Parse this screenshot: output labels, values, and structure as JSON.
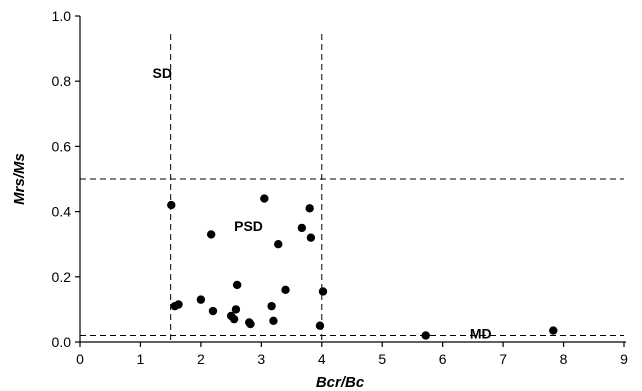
{
  "chart_data": {
    "type": "scatter",
    "title": "",
    "xlabel": "Bcr/Bc",
    "ylabel": "Mrs/Ms",
    "xlim": [
      0,
      9
    ],
    "ylim": [
      0.0,
      1.0
    ],
    "xticks": [
      0,
      1,
      2,
      3,
      4,
      5,
      6,
      7,
      8,
      9
    ],
    "yticks": [
      0.0,
      0.2,
      0.4,
      0.6,
      0.8,
      1.0
    ],
    "xtick_labels": [
      "0",
      "1",
      "2",
      "3",
      "4",
      "5",
      "6",
      "7",
      "8",
      "9"
    ],
    "ytick_labels": [
      "0.0",
      "0.2",
      "0.4",
      "0.6",
      "0.8",
      "1.0"
    ],
    "grid": false,
    "reference_lines": {
      "vertical": [
        1.5,
        4.0
      ],
      "horizontal": [
        0.5,
        0.02
      ]
    },
    "annotations": [
      {
        "text": "SD",
        "x": 1.2,
        "y": 0.81
      },
      {
        "text": "PSD",
        "x": 2.55,
        "y": 0.34
      },
      {
        "text": "MD",
        "x": 6.45,
        "y": 0.01
      }
    ],
    "marker_color": "#000000",
    "series": [
      {
        "points": [
          [
            1.51,
            0.42
          ],
          [
            1.57,
            0.11
          ],
          [
            1.63,
            0.115
          ],
          [
            2.0,
            0.13
          ],
          [
            2.17,
            0.33
          ],
          [
            2.2,
            0.095
          ],
          [
            2.5,
            0.08
          ],
          [
            2.55,
            0.07
          ],
          [
            2.58,
            0.1
          ],
          [
            2.6,
            0.175
          ],
          [
            2.8,
            0.06
          ],
          [
            2.82,
            0.055
          ],
          [
            3.05,
            0.44
          ],
          [
            3.17,
            0.11
          ],
          [
            3.2,
            0.065
          ],
          [
            3.28,
            0.3
          ],
          [
            3.4,
            0.16
          ],
          [
            3.67,
            0.35
          ],
          [
            3.8,
            0.41
          ],
          [
            3.82,
            0.32
          ],
          [
            3.97,
            0.05
          ],
          [
            4.02,
            0.155
          ],
          [
            5.72,
            0.02
          ],
          [
            7.83,
            0.035
          ]
        ]
      }
    ]
  }
}
